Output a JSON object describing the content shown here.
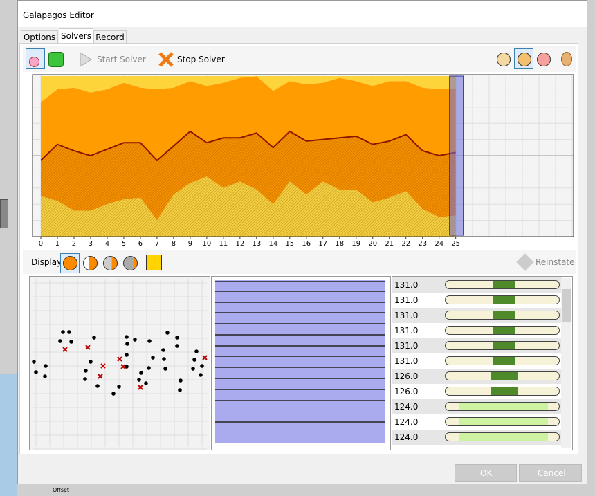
{
  "window": {
    "title": "Galapagos Editor",
    "tabs": [
      "Options",
      "Solvers",
      "Record"
    ],
    "toolbar": {
      "start": "Start Solver",
      "stop": "Stop Solver"
    },
    "display": "Display",
    "reinstate": "Reinstate",
    "buttons": {
      "ok": "OK",
      "cancel": "Cancel"
    },
    "background_label": "Offset"
  },
  "chart_data": {
    "type": "area",
    "x": [
      0,
      1,
      2,
      3,
      4,
      5,
      6,
      7,
      8,
      9,
      10,
      11,
      12,
      13,
      14,
      15,
      16,
      17,
      18,
      19,
      20,
      21,
      22,
      23,
      24,
      25
    ],
    "xlim": [
      -0.5,
      32.1
    ],
    "xticks": [
      0,
      1,
      2,
      3,
      4,
      5,
      6,
      7,
      8,
      9,
      10,
      11,
      12,
      13,
      14,
      15,
      16,
      17,
      18,
      19,
      20,
      21,
      22,
      23,
      24,
      25
    ],
    "ylim": [
      0,
      100
    ],
    "upper": [
      83,
      91,
      92,
      89,
      91,
      95,
      92,
      91,
      92,
      96,
      93,
      95,
      98,
      99,
      90,
      96,
      94,
      95,
      98,
      96,
      93,
      96,
      96,
      92,
      91,
      91
    ],
    "median": [
      47,
      57,
      53,
      50,
      54,
      58,
      58,
      47,
      56,
      65,
      58,
      61,
      61,
      64,
      55,
      65,
      59,
      60,
      61,
      62,
      57,
      59,
      63,
      53,
      50,
      52
    ],
    "lower": [
      25,
      22,
      16,
      16,
      20,
      23,
      24,
      10,
      26,
      33,
      37,
      30,
      34,
      29,
      20,
      34,
      26,
      34,
      29,
      29,
      21,
      24,
      28,
      17,
      12,
      13
    ],
    "colors": {
      "top": "#fdd43a",
      "upper": "#ff9c00",
      "lower": "#f49000",
      "bottom": "#f3cf3f",
      "line": "#8b1500"
    }
  },
  "genomes": [
    "131.0",
    "131.0",
    "131.0",
    "131.0",
    "131.0",
    "131.0",
    "126.0",
    "126.0",
    "124.0",
    "124.0",
    "124.0"
  ]
}
